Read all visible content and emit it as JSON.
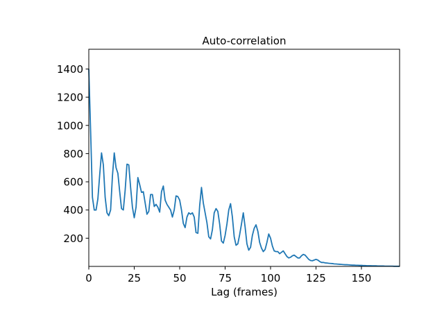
{
  "chart_data": {
    "type": "line",
    "title": "Auto-correlation",
    "xlabel": "Lag (frames)",
    "ylabel": "",
    "xlim": [
      0,
      171
    ],
    "ylim": [
      0,
      1540
    ],
    "xticks": [
      0,
      25,
      50,
      75,
      100,
      125,
      150
    ],
    "yticks": [
      200,
      400,
      600,
      800,
      1000,
      1200,
      1400
    ],
    "grid": false,
    "series": [
      {
        "name": "autocorrelation",
        "color": "#1f77b4",
        "x": [
          0,
          1,
          2,
          3,
          4,
          5,
          6,
          7,
          8,
          9,
          10,
          11,
          12,
          13,
          14,
          15,
          16,
          17,
          18,
          19,
          20,
          21,
          22,
          23,
          24,
          25,
          26,
          27,
          28,
          29,
          30,
          31,
          32,
          33,
          34,
          35,
          36,
          37,
          38,
          39,
          40,
          41,
          42,
          43,
          44,
          45,
          46,
          47,
          48,
          49,
          50,
          51,
          52,
          53,
          54,
          55,
          56,
          57,
          58,
          59,
          60,
          61,
          62,
          63,
          64,
          65,
          66,
          67,
          68,
          69,
          70,
          71,
          72,
          73,
          74,
          75,
          76,
          77,
          78,
          79,
          80,
          81,
          82,
          83,
          84,
          85,
          86,
          87,
          88,
          89,
          90,
          91,
          92,
          93,
          94,
          95,
          96,
          97,
          98,
          99,
          100,
          101,
          102,
          103,
          104,
          105,
          106,
          107,
          108,
          109,
          110,
          111,
          112,
          113,
          114,
          115,
          116,
          117,
          118,
          119,
          120,
          121,
          122,
          123,
          124,
          125,
          126,
          127,
          128,
          129,
          130,
          131,
          132,
          133,
          134,
          135,
          136,
          137,
          138,
          139,
          140,
          141,
          142,
          143,
          144,
          145,
          146,
          147,
          148,
          149,
          150,
          151,
          152,
          153,
          154,
          155,
          156,
          157,
          158,
          159,
          160,
          161,
          162,
          163,
          164,
          165,
          166,
          167,
          168,
          169,
          170,
          171
        ],
        "values": [
          1400,
          960,
          490,
          400,
          400,
          480,
          650,
          805,
          720,
          490,
          380,
          360,
          400,
          640,
          805,
          700,
          660,
          530,
          410,
          400,
          540,
          725,
          720,
          560,
          420,
          345,
          420,
          630,
          580,
          525,
          530,
          450,
          370,
          390,
          510,
          510,
          425,
          440,
          420,
          385,
          530,
          570,
          470,
          440,
          420,
          400,
          350,
          400,
          500,
          495,
          470,
          400,
          305,
          275,
          350,
          380,
          370,
          380,
          350,
          240,
          235,
          430,
          560,
          450,
          380,
          310,
          210,
          195,
          260,
          380,
          410,
          390,
          300,
          180,
          165,
          220,
          300,
          400,
          445,
          350,
          210,
          150,
          160,
          225,
          300,
          380,
          280,
          160,
          115,
          135,
          220,
          270,
          295,
          250,
          170,
          130,
          105,
          120,
          170,
          230,
          200,
          145,
          110,
          105,
          105,
          90,
          100,
          110,
          90,
          70,
          60,
          65,
          75,
          80,
          70,
          60,
          60,
          75,
          85,
          80,
          65,
          50,
          42,
          40,
          45,
          50,
          45,
          35,
          28,
          28,
          25,
          24,
          22,
          21,
          20,
          18,
          17,
          16,
          15,
          14,
          13,
          12,
          12,
          11,
          10,
          9,
          9,
          8,
          8,
          7,
          7,
          6,
          6,
          5,
          5,
          5,
          4,
          4,
          4,
          3,
          3,
          3,
          3,
          2,
          2,
          2,
          2,
          2,
          1,
          1,
          1,
          1
        ]
      }
    ]
  }
}
